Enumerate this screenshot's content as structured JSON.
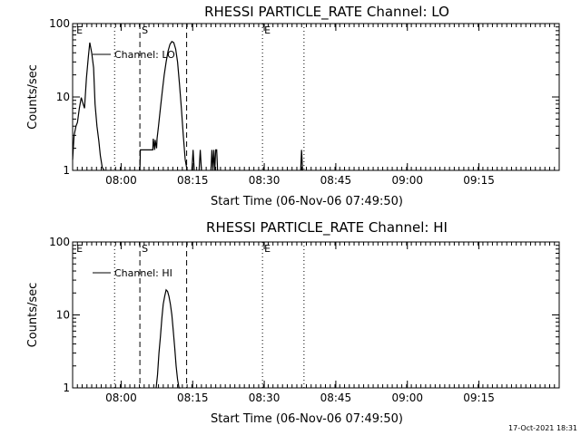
{
  "chart_data": [
    {
      "type": "line",
      "title": "RHESSI PARTICLE_RATE Channel: LO",
      "xlabel": "Start Time (06-Nov-06 07:49:50)",
      "ylabel": "Counts/sec",
      "y_scale": "log",
      "ylim": [
        1,
        100
      ],
      "y_ticks": [
        {
          "v": 1,
          "label": "1"
        },
        {
          "v": 10,
          "label": "10"
        },
        {
          "v": 100,
          "label": "100"
        }
      ],
      "xlim_min": [
        0,
        102
      ],
      "x_ticks": [
        {
          "t": 10.17,
          "label": "08:00"
        },
        {
          "t": 25.17,
          "label": "08:15"
        },
        {
          "t": 40.17,
          "label": "08:30"
        },
        {
          "t": 55.17,
          "label": "08:45"
        },
        {
          "t": 70.17,
          "label": "09:00"
        },
        {
          "t": 85.17,
          "label": "09:15"
        }
      ],
      "legend": {
        "label": "Channel: LO",
        "position": "top-left"
      },
      "markers": [
        {
          "t": 0.4,
          "label": "E",
          "style": "none"
        },
        {
          "t": 8.8,
          "label": "",
          "style": "dotted"
        },
        {
          "t": 14.1,
          "label": "S",
          "style": "dashed"
        },
        {
          "t": 23.9,
          "label": "",
          "style": "dashed"
        },
        {
          "t": 39.8,
          "label": "E",
          "style": "dotted"
        },
        {
          "t": 48.5,
          "label": "",
          "style": "dotted"
        }
      ],
      "series": [
        {
          "name": "Channel: LO",
          "x": [
            0,
            0.3,
            0.7,
            1.0,
            1.4,
            1.8,
            2.2,
            2.5,
            2.9,
            3.3,
            3.6,
            4.0,
            4.4,
            4.7,
            5.1,
            5.5,
            5.8,
            6.2,
            6.6
          ],
          "y": [
            1.4,
            3.0,
            4.0,
            4.5,
            7.0,
            9.8,
            8.0,
            7.0,
            18,
            35,
            55,
            40,
            25,
            8,
            4,
            2.5,
            1.6,
            1.1,
            1.0
          ],
          "segments": [
            {
              "x": [
                0,
                0.3,
                0.7,
                1.0,
                1.4,
                1.8,
                2.2,
                2.5,
                2.9,
                3.3,
                3.6,
                4.0,
                4.4,
                4.7,
                5.1,
                5.5,
                5.8,
                6.2,
                6.6
              ],
              "y": [
                1.4,
                3.0,
                4.0,
                4.5,
                7.0,
                9.8,
                8.0,
                7.0,
                18,
                35,
                55,
                40,
                25,
                8,
                4,
                2.5,
                1.6,
                1.1,
                1.0
              ]
            },
            {
              "x": [
                14.1,
                14.2,
                14.3,
                16.8,
                16.9,
                17.2,
                17.3,
                17.6,
                17.7,
                18.0,
                18.4,
                18.8,
                19.2,
                19.6,
                20.0,
                20.4,
                20.8,
                21.2,
                21.6,
                22.0,
                22.4,
                22.8,
                23.2,
                23.6,
                24.0
              ],
              "y": [
                1.0,
                1.9,
                1.9,
                1.9,
                2.7,
                1.9,
                2.6,
                2.0,
                2.7,
                4,
                7,
                12,
                20,
                30,
                42,
                52,
                57,
                55,
                45,
                30,
                15,
                7,
                3,
                1.4,
                1.0
              ]
            },
            {
              "x": [
                25.0,
                25.25,
                25.5
              ],
              "y": [
                1.0,
                1.9,
                1.0
              ]
            },
            {
              "x": [
                26.5,
                26.75,
                27.0
              ],
              "y": [
                1.0,
                1.9,
                1.0
              ]
            },
            {
              "x": [
                29.0,
                29.2,
                29.4,
                29.6,
                29.8,
                30.0,
                30.2,
                30.4
              ],
              "y": [
                1.0,
                1.9,
                1.0,
                1.9,
                1.0,
                1.9,
                1.9,
                1.0
              ]
            },
            {
              "x": [
                47.8,
                48.0,
                48.2
              ],
              "y": [
                1.0,
                1.9,
                1.0
              ]
            }
          ]
        }
      ]
    },
    {
      "type": "line",
      "title": "RHESSI PARTICLE_RATE Channel: HI",
      "xlabel": "Start Time (06-Nov-06 07:49:50)",
      "ylabel": "Counts/sec",
      "y_scale": "log",
      "ylim": [
        1,
        100
      ],
      "y_ticks": [
        {
          "v": 1,
          "label": "1"
        },
        {
          "v": 10,
          "label": "10"
        },
        {
          "v": 100,
          "label": "100"
        }
      ],
      "xlim_min": [
        0,
        102
      ],
      "x_ticks": [
        {
          "t": 10.17,
          "label": "08:00"
        },
        {
          "t": 25.17,
          "label": "08:15"
        },
        {
          "t": 40.17,
          "label": "08:30"
        },
        {
          "t": 55.17,
          "label": "08:45"
        },
        {
          "t": 70.17,
          "label": "09:00"
        },
        {
          "t": 85.17,
          "label": "09:15"
        }
      ],
      "legend": {
        "label": "Channel: HI",
        "position": "top-left"
      },
      "markers": [
        {
          "t": 0.4,
          "label": "E",
          "style": "none"
        },
        {
          "t": 8.8,
          "label": "",
          "style": "dotted"
        },
        {
          "t": 14.1,
          "label": "S",
          "style": "dashed"
        },
        {
          "t": 23.9,
          "label": "",
          "style": "dashed"
        },
        {
          "t": 39.8,
          "label": "E",
          "style": "dotted"
        },
        {
          "t": 48.5,
          "label": "",
          "style": "dotted"
        }
      ],
      "series": [
        {
          "name": "Channel: HI",
          "segments": [
            {
              "x": [
                17.5,
                17.8,
                18.1,
                18.4,
                18.7,
                19.0,
                19.3,
                19.6,
                19.9,
                20.2,
                20.5,
                20.8,
                21.1,
                21.4,
                21.7,
                22.0,
                22.3,
                22.6
              ],
              "y": [
                1.0,
                1.5,
                3,
                5,
                9,
                14,
                18,
                22,
                21,
                18,
                14,
                10,
                6,
                3.5,
                2,
                1.3,
                1.0,
                1.0
              ]
            }
          ]
        }
      ]
    }
  ],
  "footer": {
    "timestamp": "17-Oct-2021 18:31"
  }
}
